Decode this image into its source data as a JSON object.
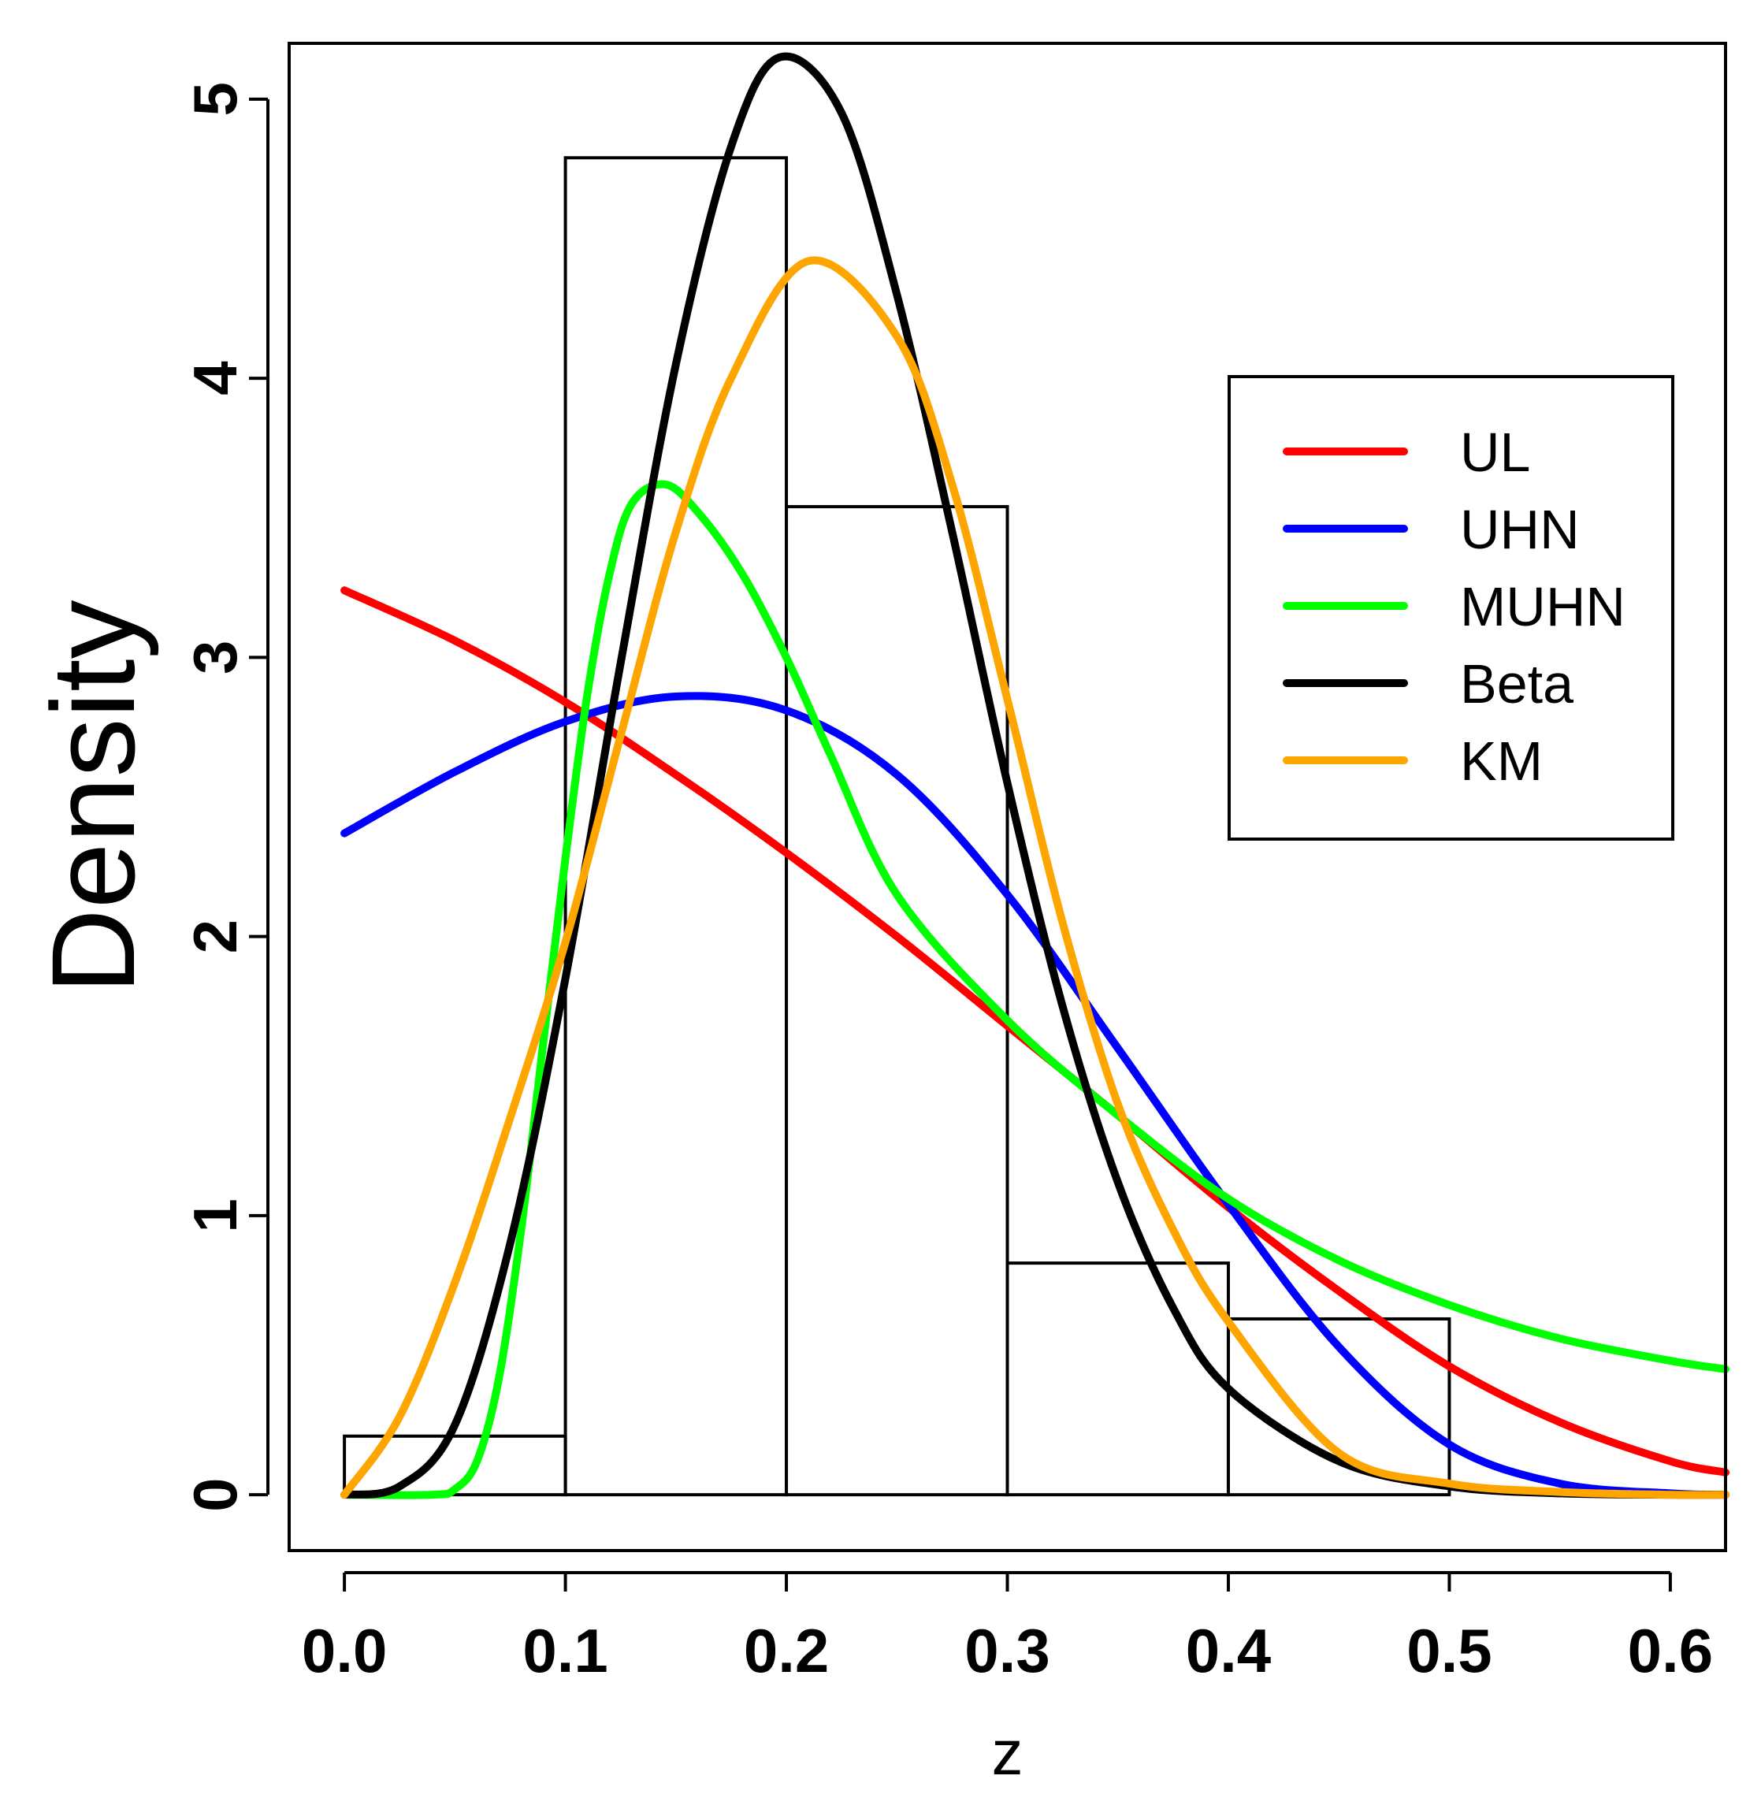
{
  "chart_data": {
    "type": "histogram-with-density-curves",
    "title": "",
    "xlabel": "z",
    "ylabel": "Density",
    "xlim": [
      -0.025,
      0.625
    ],
    "ylim": [
      -0.2,
      5.2
    ],
    "xticks": [
      0.0,
      0.1,
      0.2,
      0.3,
      0.4,
      0.5,
      0.6
    ],
    "xtick_labels": [
      "0.0",
      "0.1",
      "0.2",
      "0.3",
      "0.4",
      "0.5",
      "0.6"
    ],
    "yticks": [
      0,
      1,
      2,
      3,
      4,
      5
    ],
    "ytick_labels": [
      "0",
      "1",
      "2",
      "3",
      "4",
      "5"
    ],
    "histogram": {
      "bins": [
        {
          "x0": 0.0,
          "x1": 0.1,
          "density": 0.21
        },
        {
          "x0": 0.1,
          "x1": 0.2,
          "density": 4.79
        },
        {
          "x0": 0.2,
          "x1": 0.3,
          "density": 3.54
        },
        {
          "x0": 0.3,
          "x1": 0.4,
          "density": 0.83
        },
        {
          "x0": 0.4,
          "x1": 0.5,
          "density": 0.63
        }
      ]
    },
    "series": [
      {
        "name": "UL",
        "color": "#ff0000",
        "x": [
          0.0,
          0.05,
          0.1,
          0.15,
          0.2,
          0.25,
          0.3,
          0.35,
          0.4,
          0.45,
          0.5,
          0.55,
          0.6,
          0.625
        ],
        "values": [
          3.24,
          3.06,
          2.84,
          2.58,
          2.3,
          2.0,
          1.68,
          1.36,
          1.03,
          0.73,
          0.46,
          0.26,
          0.12,
          0.08
        ]
      },
      {
        "name": "UHN",
        "color": "#0000ff",
        "x": [
          0.0,
          0.05,
          0.1,
          0.15,
          0.2,
          0.25,
          0.3,
          0.35,
          0.4,
          0.45,
          0.5,
          0.55,
          0.6,
          0.625
        ],
        "values": [
          2.37,
          2.59,
          2.77,
          2.86,
          2.81,
          2.58,
          2.15,
          1.6,
          1.04,
          0.53,
          0.18,
          0.04,
          0.005,
          0.0
        ]
      },
      {
        "name": "MUHN",
        "color": "#00ff00",
        "x": [
          0.0,
          0.04,
          0.05,
          0.06,
          0.07,
          0.08,
          0.09,
          0.1,
          0.11,
          0.12,
          0.13,
          0.145,
          0.16,
          0.18,
          0.2,
          0.22,
          0.25,
          0.3,
          0.35,
          0.4,
          0.45,
          0.5,
          0.55,
          0.6,
          0.625
        ],
        "values": [
          0.0,
          0.0,
          0.02,
          0.12,
          0.42,
          0.95,
          1.62,
          2.28,
          2.87,
          3.3,
          3.55,
          3.62,
          3.52,
          3.3,
          3.0,
          2.65,
          2.15,
          1.7,
          1.36,
          1.06,
          0.84,
          0.68,
          0.56,
          0.48,
          0.45
        ]
      },
      {
        "name": "Beta",
        "color": "#000000",
        "x": [
          0.0,
          0.025,
          0.05,
          0.075,
          0.1,
          0.125,
          0.15,
          0.175,
          0.197,
          0.225,
          0.25,
          0.275,
          0.3,
          0.325,
          0.35,
          0.375,
          0.4,
          0.45,
          0.5,
          0.55,
          0.6,
          0.625
        ],
        "values": [
          0.0,
          0.03,
          0.25,
          0.9,
          1.85,
          2.98,
          4.05,
          4.83,
          5.15,
          4.95,
          4.3,
          3.45,
          2.55,
          1.75,
          1.12,
          0.67,
          0.38,
          0.12,
          0.03,
          0.005,
          0.0,
          0.0
        ]
      },
      {
        "name": "KM",
        "color": "#ffa500",
        "x": [
          0.0,
          0.025,
          0.05,
          0.075,
          0.1,
          0.125,
          0.15,
          0.175,
          0.21,
          0.25,
          0.275,
          0.3,
          0.325,
          0.35,
          0.375,
          0.4,
          0.45,
          0.5,
          0.55,
          0.6,
          0.625
        ],
        "values": [
          0.0,
          0.28,
          0.76,
          1.35,
          1.98,
          2.72,
          3.45,
          4.0,
          4.42,
          4.15,
          3.62,
          2.85,
          2.05,
          1.4,
          0.95,
          0.62,
          0.15,
          0.04,
          0.01,
          0.0,
          0.0
        ]
      }
    ],
    "legend": {
      "position": "top-right",
      "entries": [
        {
          "label": "UL",
          "color": "#ff0000"
        },
        {
          "label": "UHN",
          "color": "#0000ff"
        },
        {
          "label": "MUHN",
          "color": "#00ff00"
        },
        {
          "label": "Beta",
          "color": "#000000"
        },
        {
          "label": "KM",
          "color": "#ffa500"
        }
      ]
    }
  }
}
